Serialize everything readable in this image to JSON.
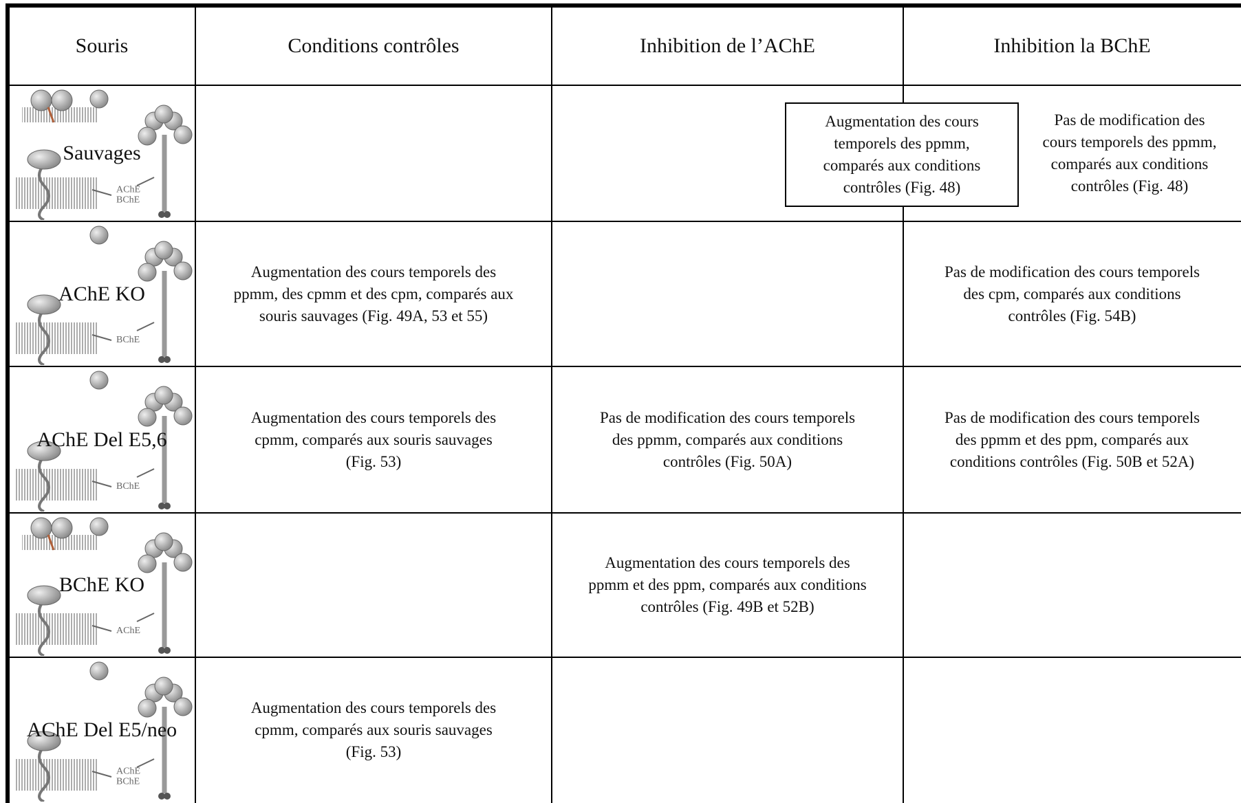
{
  "table": {
    "header": [
      "Souris",
      "Conditions contrôles",
      "Inhibition de l’AChE",
      "Inhibition la BChE"
    ],
    "rows": [
      {
        "mouse": "Sauvages",
        "icon_labels": [
          "AChE",
          "BChE"
        ],
        "cells": [
          null,
          [
            "Augmentation des cours",
            "temporels des ppmm,",
            "comparés aux conditions",
            "contrôles (Fig. 48)"
          ],
          [
            "Pas de modification des",
            "cours temporels des ppmm,",
            "comparés aux conditions",
            "contrôles (Fig. 48)"
          ]
        ]
      },
      {
        "mouse": "AChE KO",
        "icon_labels": [
          "BChE"
        ],
        "cells": [
          [
            "Augmentation des cours temporels des",
            "ppmm, des cpmm et des cpm, comparés aux",
            "souris sauvages (Fig. 49A, 53 et 55)"
          ],
          null,
          [
            "Pas de modification des cours temporels",
            "des cpm, comparés aux conditions",
            "contrôles (Fig. 54B)"
          ]
        ]
      },
      {
        "mouse": "AChE Del E5,6",
        "icon_labels": [
          "BChE"
        ],
        "cells": [
          [
            "Augmentation des cours temporels des",
            "cpmm, comparés aux souris sauvages",
            "(Fig. 53)"
          ],
          [
            "Pas de modification des cours temporels",
            "des ppmm, comparés aux conditions",
            "contrôles (Fig. 50A)"
          ],
          [
            "Pas de modification des cours temporels",
            "des ppmm et des ppm, comparés aux",
            "conditions contrôles (Fig. 50B et 52A)"
          ]
        ]
      },
      {
        "mouse": "BChE KO",
        "icon_labels": [
          "AChE"
        ],
        "cells": [
          null,
          [
            "Augmentation des cours temporels des",
            "ppmm et des ppm, comparés aux conditions",
            "contrôles (Fig. 49B et 52B)"
          ],
          null
        ]
      },
      {
        "mouse": "AChE Del E5/neo",
        "icon_labels": [
          "AChE",
          "BChE"
        ],
        "cells": [
          [
            "Augmentation des cours temporels des",
            "cpmm, comparés aux souris sauvages",
            "(Fig. 53)"
          ],
          null,
          null
        ]
      }
    ]
  }
}
